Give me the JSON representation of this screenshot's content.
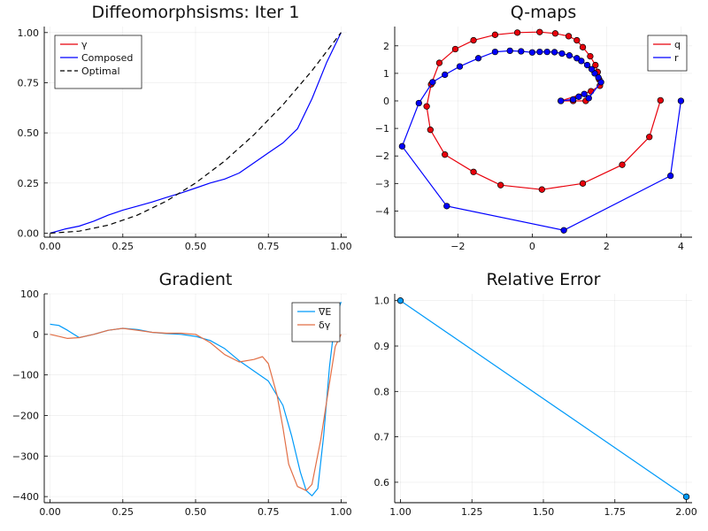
{
  "chart_data": [
    {
      "type": "line",
      "title": "Diffeomorphsisms: Iter 1",
      "xlim": [
        -0.02,
        1.02
      ],
      "ylim": [
        -0.02,
        1.03
      ],
      "xticks": [
        0.0,
        0.25,
        0.5,
        0.75,
        1.0
      ],
      "xticklabels": [
        "0.00",
        "0.25",
        "0.50",
        "0.75",
        "1.00"
      ],
      "yticks": [
        0.0,
        0.25,
        0.5,
        0.75,
        1.0
      ],
      "yticklabels": [
        "0.00",
        "0.25",
        "0.50",
        "0.75",
        "1.00"
      ],
      "grid": true,
      "legend_position": "top-left",
      "series": [
        {
          "name": "γ",
          "color": "#e8000b",
          "style": "solid",
          "x": [],
          "y": []
        },
        {
          "name": "Composed",
          "color": "#0000ff",
          "style": "solid",
          "x": [
            0,
            0.05,
            0.1,
            0.15,
            0.2,
            0.25,
            0.3,
            0.35,
            0.4,
            0.45,
            0.5,
            0.55,
            0.6,
            0.65,
            0.7,
            0.75,
            0.8,
            0.85,
            0.9,
            0.95,
            1.0
          ],
          "y": [
            0,
            0.02,
            0.035,
            0.06,
            0.09,
            0.115,
            0.135,
            0.155,
            0.178,
            0.2,
            0.225,
            0.25,
            0.27,
            0.3,
            0.35,
            0.4,
            0.45,
            0.52,
            0.67,
            0.85,
            1.0
          ]
        },
        {
          "name": "Optimal",
          "color": "#000000",
          "style": "dashed",
          "x": [
            0,
            0.1,
            0.2,
            0.3,
            0.4,
            0.5,
            0.6,
            0.7,
            0.8,
            0.9,
            1.0
          ],
          "y": [
            0,
            0.01,
            0.04,
            0.09,
            0.16,
            0.25,
            0.36,
            0.49,
            0.64,
            0.81,
            1.0
          ]
        }
      ]
    },
    {
      "type": "scatter",
      "title": "Q-maps",
      "xlim": [
        -3.7,
        4.3
      ],
      "ylim": [
        -4.95,
        2.7
      ],
      "xticks": [
        -2,
        0,
        2,
        4
      ],
      "xticklabels": [
        "−2",
        "0",
        "2",
        "4"
      ],
      "yticks": [
        -4,
        -3,
        -2,
        -1,
        0,
        1,
        2
      ],
      "yticklabels": [
        "−4",
        "−3",
        "−2",
        "−1",
        "0",
        "1",
        "2"
      ],
      "grid": true,
      "legend_position": "top-right",
      "series": [
        {
          "name": "q",
          "color": "#e8000b",
          "x": [
            1.44,
            1.1,
            0.77,
            1.58,
            1.82,
            1.8,
            1.76,
            1.7,
            1.56,
            1.36,
            1.2,
            0.98,
            0.62,
            0.2,
            -0.4,
            -1.0,
            -1.58,
            -2.07,
            -2.5,
            -2.72,
            -2.84,
            -2.74,
            -2.35,
            -1.58,
            -0.85,
            0.26,
            1.36,
            2.42,
            3.15,
            3.45
          ],
          "y": [
            0.0,
            0.0,
            0.0,
            0.35,
            0.55,
            0.78,
            1.05,
            1.3,
            1.62,
            1.95,
            2.2,
            2.35,
            2.45,
            2.5,
            2.48,
            2.4,
            2.2,
            1.88,
            1.38,
            0.6,
            -0.2,
            -1.05,
            -1.95,
            -2.58,
            -3.06,
            -3.22,
            -3.0,
            -2.32,
            -1.31,
            0.02
          ],
          "curve_x": [],
          "curve_y": []
        },
        {
          "name": "r",
          "color": "#0000ff",
          "x": [
            0.77,
            1.1,
            1.25,
            1.4,
            1.52,
            1.85,
            1.78,
            1.68,
            1.6,
            1.48,
            1.32,
            1.2,
            1.0,
            0.8,
            0.6,
            0.4,
            0.2,
            0.0,
            -0.3,
            -0.6,
            -1.0,
            -1.45,
            -1.95,
            -2.35,
            -2.68,
            -3.05,
            -3.5,
            -2.3,
            0.85,
            3.72,
            4.0
          ],
          "y": [
            0.0,
            0.05,
            0.15,
            0.25,
            0.1,
            0.68,
            0.85,
            1.0,
            1.15,
            1.3,
            1.45,
            1.55,
            1.65,
            1.72,
            1.77,
            1.78,
            1.78,
            1.76,
            1.8,
            1.82,
            1.78,
            1.55,
            1.25,
            0.95,
            0.68,
            -0.08,
            -1.65,
            -3.82,
            -4.7,
            -2.72,
            0.0
          ]
        }
      ]
    },
    {
      "type": "line",
      "title": "Gradient",
      "xlim": [
        -0.02,
        1.02
      ],
      "ylim": [
        -415,
        100
      ],
      "xticks": [
        0.0,
        0.25,
        0.5,
        0.75,
        1.0
      ],
      "xticklabels": [
        "0.00",
        "0.25",
        "0.50",
        "0.75",
        "1.00"
      ],
      "yticks": [
        -400,
        -300,
        -200,
        -100,
        0,
        100
      ],
      "yticklabels": [
        "−400",
        "−300",
        "−200",
        "−100",
        "0",
        "100"
      ],
      "grid": true,
      "legend_position": "top-right",
      "series": [
        {
          "name": "∇E",
          "color": "#009af9",
          "x": [
            0,
            0.03,
            0.06,
            0.1,
            0.15,
            0.2,
            0.25,
            0.3,
            0.35,
            0.4,
            0.45,
            0.5,
            0.55,
            0.6,
            0.65,
            0.7,
            0.75,
            0.8,
            0.83,
            0.86,
            0.88,
            0.9,
            0.92,
            0.94,
            0.96,
            0.98,
            1.0
          ],
          "y": [
            25,
            22,
            10,
            -8,
            0,
            10,
            15,
            12,
            5,
            2,
            0,
            -5,
            -15,
            -35,
            -65,
            -90,
            -115,
            -175,
            -250,
            -340,
            -385,
            -398,
            -380,
            -250,
            -80,
            40,
            80
          ]
        },
        {
          "name": "δγ",
          "color": "#e26f46",
          "x": [
            0,
            0.03,
            0.06,
            0.1,
            0.15,
            0.2,
            0.25,
            0.3,
            0.35,
            0.4,
            0.45,
            0.5,
            0.55,
            0.6,
            0.65,
            0.7,
            0.73,
            0.75,
            0.78,
            0.8,
            0.82,
            0.85,
            0.88,
            0.9,
            0.93,
            0.96,
            0.98,
            1.0
          ],
          "y": [
            0,
            -5,
            -10,
            -8,
            0,
            10,
            15,
            10,
            5,
            3,
            3,
            0,
            -20,
            -50,
            -68,
            -62,
            -55,
            -72,
            -150,
            -230,
            -320,
            -375,
            -385,
            -370,
            -260,
            -120,
            -30,
            0
          ]
        }
      ]
    },
    {
      "type": "line",
      "title": "Relative Error",
      "xlim": [
        0.98,
        2.02
      ],
      "ylim": [
        0.555,
        1.015
      ],
      "xticks": [
        1.0,
        1.25,
        1.5,
        1.75,
        2.0
      ],
      "xticklabels": [
        "1.00",
        "1.25",
        "1.50",
        "1.75",
        "2.00"
      ],
      "yticks": [
        0.6,
        0.7,
        0.8,
        0.9,
        1.0
      ],
      "yticklabels": [
        "0.6",
        "0.7",
        "0.8",
        "0.9",
        "1.0"
      ],
      "grid": true,
      "series": [
        {
          "name": "",
          "color": "#009af9",
          "x": [
            1,
            2
          ],
          "y": [
            1.0,
            0.568
          ],
          "markers": true
        }
      ]
    }
  ]
}
